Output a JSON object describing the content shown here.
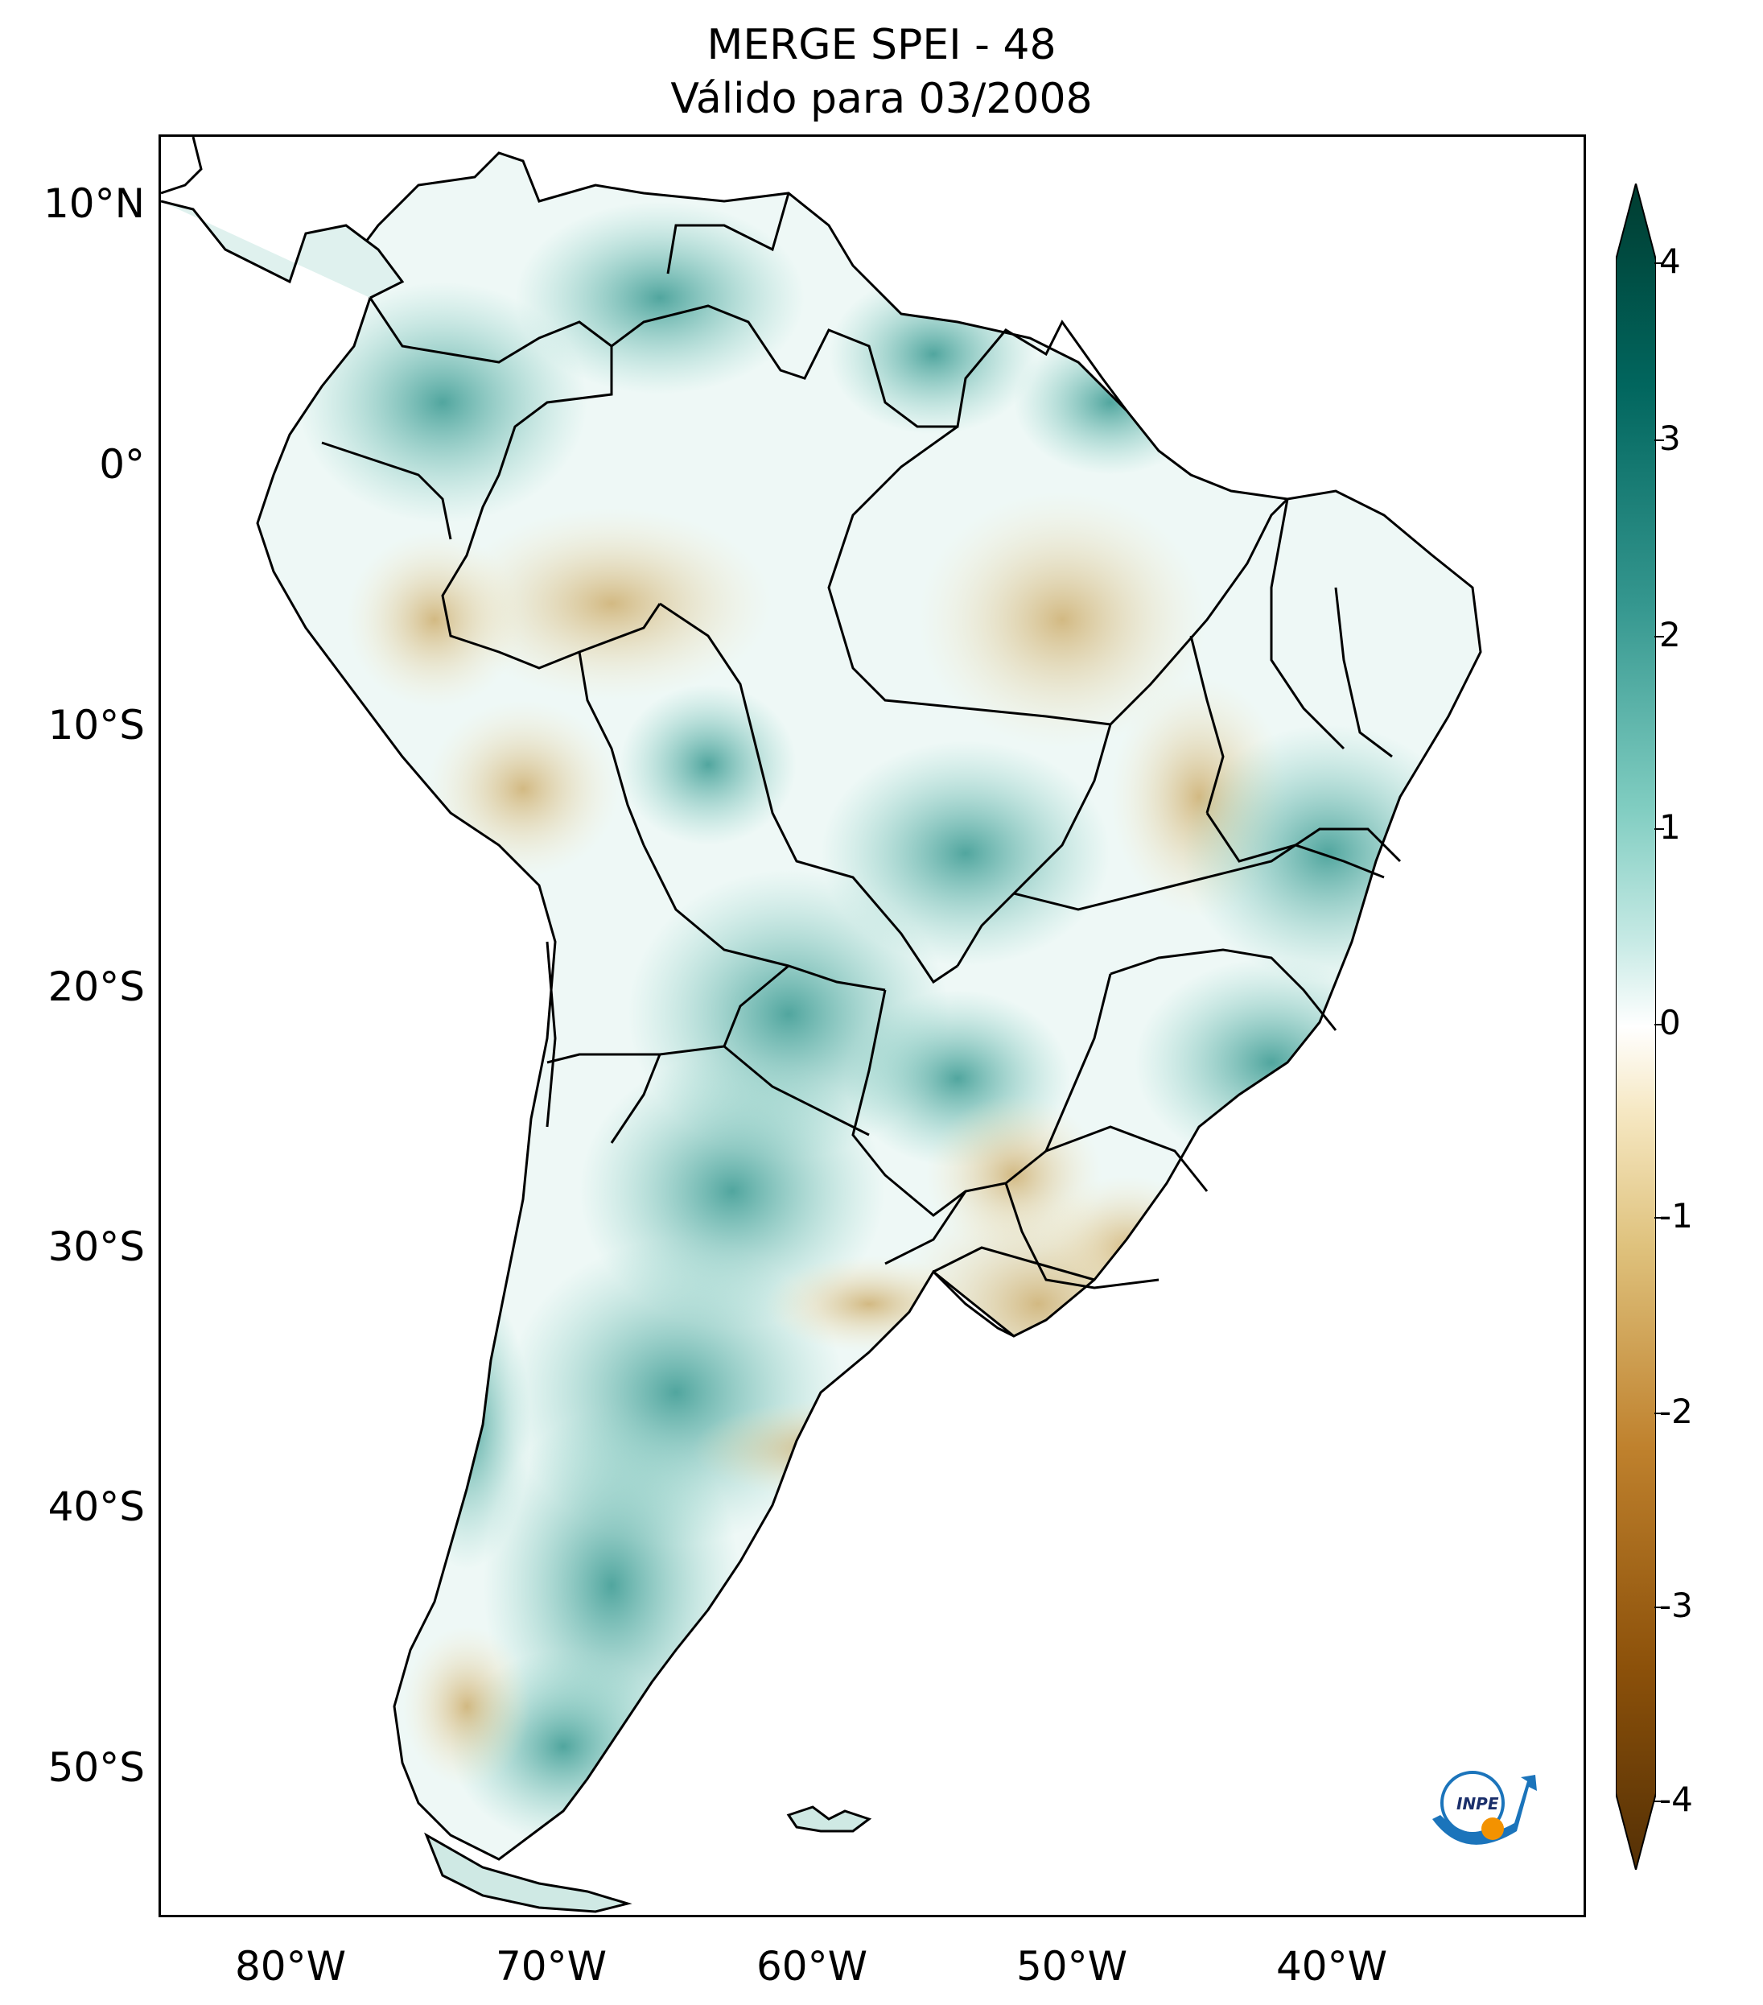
{
  "title_line1": "MERGE   SPEI - 48",
  "title_line2": "Válido para 03/2008",
  "lat_labels": [
    "10°N",
    "0°",
    "10°S",
    "20°S",
    "30°S",
    "40°S",
    "50°S"
  ],
  "lon_labels": [
    "80°W",
    "70°W",
    "60°W",
    "50°W",
    "40°W"
  ],
  "colorbar": {
    "ticks": [
      "4",
      "3",
      "2",
      "1",
      "0",
      "-1",
      "-2",
      "-3",
      "-4"
    ],
    "min": -4,
    "max": 4,
    "colors": [
      "#543005",
      "#8c510a",
      "#bf812d",
      "#dfc27d",
      "#f6e8c3",
      "#ffffff",
      "#c7eae5",
      "#80cdc1",
      "#35978f",
      "#01665e",
      "#003c30"
    ]
  },
  "logo_text": "INPE"
}
